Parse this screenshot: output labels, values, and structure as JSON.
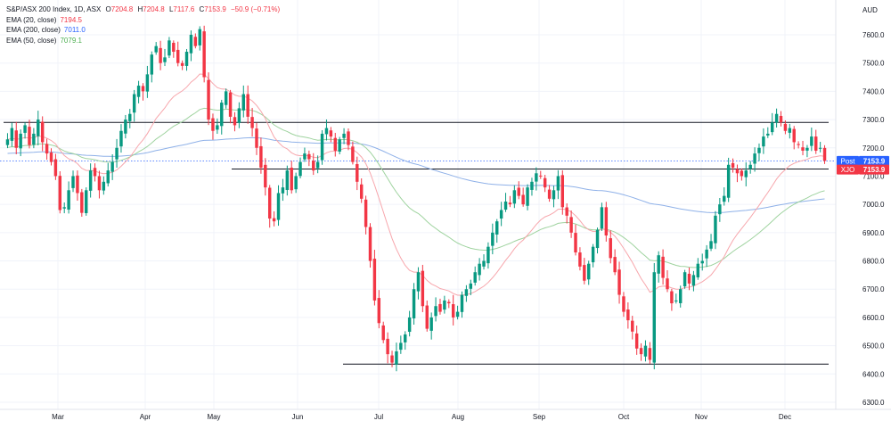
{
  "header": {
    "symbol": "S&P/ASX 200 Index, 1D, ASX",
    "open_label": "O",
    "open": "7204.8",
    "high_label": "H",
    "high": "7204.8",
    "low_label": "L",
    "low": "7117.6",
    "close_label": "C",
    "close": "7153.9",
    "change": "−50.9 (−0.71%)",
    "currency": "AUD"
  },
  "legend": [
    {
      "label": "EMA (20, close)",
      "value": "7194.5",
      "color": "#f23645"
    },
    {
      "label": "EMA (200, close)",
      "value": "7011.0",
      "color": "#2962ff"
    },
    {
      "label": "EMA (50, close)",
      "value": "7079.1",
      "color": "#4caf50"
    }
  ],
  "price_tags": [
    {
      "name": "post-price-tag",
      "label": "Post",
      "value": "7153.9",
      "color": "#2962ff",
      "price": 7153.9
    },
    {
      "name": "xjo-price-tag",
      "label": "XJO",
      "value": "7153.9",
      "color": "#f23645",
      "price": 7123
    }
  ],
  "chart_data": {
    "type": "candlestick",
    "y_ticks": [
      "6300.0",
      "6400.0",
      "6500.0",
      "6600.0",
      "6700.0",
      "6800.0",
      "6900.0",
      "7000.0",
      "7100.0",
      "7200.0",
      "7300.0",
      "7400.0",
      "7500.0",
      "7600.0"
    ],
    "y_range": [
      6270,
      7680
    ],
    "x_labels": [
      "Mar",
      "Apr",
      "May",
      "Jun",
      "Jul",
      "Aug",
      "Sep",
      "Oct",
      "Nov",
      "Dec"
    ],
    "horizontal_lines": [
      7290,
      7125,
      6435
    ],
    "colors": {
      "up": "#089981",
      "down": "#f23645",
      "ema20": "#f7a6ac",
      "ema50": "#9fd39f",
      "ema200": "#8fb1e8"
    },
    "closes": [
      7230,
      7270,
      7200,
      7250,
      7280,
      7210,
      7250,
      7300,
      7220,
      7180,
      7150,
      7100,
      6980,
      6990,
      7050,
      7100,
      7040,
      6970,
      7050,
      7120,
      7100,
      7050,
      7080,
      7120,
      7150,
      7200,
      7260,
      7300,
      7320,
      7390,
      7420,
      7400,
      7460,
      7530,
      7560,
      7500,
      7520,
      7580,
      7540,
      7500,
      7490,
      7540,
      7600,
      7560,
      7620,
      7450,
      7300,
      7260,
      7280,
      7360,
      7400,
      7310,
      7280,
      7340,
      7390,
      7310,
      7270,
      7200,
      7130,
      7060,
      6950,
      6940,
      7040,
      7060,
      7120,
      7050,
      7100,
      7150,
      7180,
      7160,
      7120,
      7150,
      7250,
      7270,
      7240,
      7190,
      7230,
      7250,
      7210,
      7150,
      7080,
      7020,
      6920,
      6800,
      6660,
      6580,
      6520,
      6470,
      6440,
      6480,
      6510,
      6540,
      6600,
      6700,
      6760,
      6640,
      6560,
      6600,
      6640,
      6620,
      6660,
      6650,
      6600,
      6620,
      6680,
      6700,
      6720,
      6760,
      6790,
      6800,
      6850,
      6900,
      6940,
      6980,
      7010,
      7000,
      7050,
      7030,
      7000,
      7060,
      7080,
      7110,
      7100,
      7060,
      7020,
      7050,
      7100,
      6990,
      6960,
      6900,
      6830,
      6780,
      6730,
      6790,
      6850,
      6910,
      6990,
      6890,
      6810,
      6760,
      6680,
      6620,
      6590,
      6550,
      6490,
      6470,
      6500,
      6450,
      6760,
      6820,
      6740,
      6700,
      6650,
      6660,
      6700,
      6760,
      6720,
      6750,
      6790,
      6800,
      6840,
      6870,
      6960,
      7000,
      7030,
      7140,
      7130,
      7110,
      7100,
      7120,
      7140,
      7180,
      7200,
      7240,
      7250,
      7290,
      7320,
      7290,
      7260,
      7270,
      7220,
      7210,
      7190,
      7200,
      7240,
      7190,
      7200,
      7154
    ],
    "ema200_anchor": 7180,
    "ema50_anchor": 7200,
    "ema20_anchor": 7230
  },
  "axis_label": "AUD"
}
